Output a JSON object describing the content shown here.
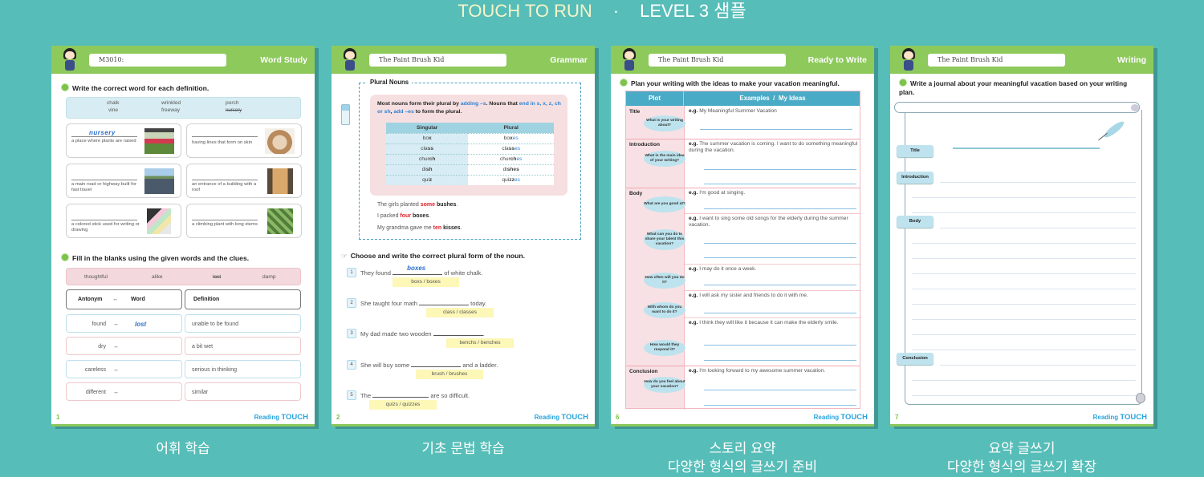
{
  "banner": {
    "brand": "TOUCH TO RUN",
    "separator": "·",
    "level": "LEVEL 3 샘플"
  },
  "colors": {
    "background": "#57bdb8",
    "header_green": "#8ec95c",
    "logo_blue": "#2aa4dc",
    "table_teal": "#4aabc6"
  },
  "logo": {
    "a": "Reading ",
    "b": "TOUCH"
  },
  "pages": [
    {
      "title_box": "M3010:",
      "section": "Word Study",
      "instruction1": "Write the correct word for each definition.",
      "word_bank": [
        "chalk",
        "wrinkled",
        "porch",
        "vine",
        "freeway",
        "nursery"
      ],
      "cards": [
        {
          "answer": "nursery",
          "definition": "a place where plants are raised",
          "image": "greenhouse"
        },
        {
          "answer": "",
          "definition": "having lines that form on skin",
          "image": "bulldog"
        },
        {
          "answer": "",
          "definition": "a main road or highway built for fast travel",
          "image": "freeway"
        },
        {
          "answer": "",
          "definition": "an entrance of a building with a roof",
          "image": "porch"
        },
        {
          "answer": "",
          "definition": "a colored stick used for writing or drawing",
          "image": "chalk"
        },
        {
          "answer": "",
          "definition": "a climbing plant with long stems",
          "image": "vine"
        }
      ],
      "instruction2": "Fill in the blanks using the given words and the clues.",
      "word_bank2": [
        "thoughtful",
        "alike",
        "lost",
        "damp"
      ],
      "header": {
        "antonym": "Antonym",
        "arrow": "↔",
        "word": "Word",
        "definition": "Definition"
      },
      "rows": [
        {
          "antonym": "found",
          "word": "lost",
          "definition": "unable to be found"
        },
        {
          "antonym": "dry",
          "word": "",
          "definition": "a bit wet"
        },
        {
          "antonym": "careless",
          "word": "",
          "definition": "serious in thinking"
        },
        {
          "antonym": "different",
          "word": "",
          "definition": "similar"
        }
      ],
      "page_number": "1"
    },
    {
      "title_box": "The Paint Brush Kid",
      "section": "Grammar",
      "box_title": "Plural Nouns",
      "rule": [
        "Most nouns form their plural by ",
        "adding –s",
        ". Nouns that ",
        "end in s, x, z, ch or sh",
        ", ",
        "add –es",
        " to form the plural."
      ],
      "table_headers": [
        "Singular",
        "Plural"
      ],
      "table_rows": [
        {
          "singular": [
            "bo",
            "x"
          ],
          "plural": [
            "bo",
            "x",
            "es"
          ]
        },
        {
          "singular": [
            "cla",
            "ss"
          ],
          "plural": [
            "cla",
            "ss",
            "es"
          ]
        },
        {
          "singular": [
            "chur",
            "ch"
          ],
          "plural": [
            "chur",
            "ch",
            "es"
          ]
        },
        {
          "singular": [
            "di",
            "sh"
          ],
          "plural": [
            "di",
            "sh",
            "es"
          ]
        },
        {
          "singular": [
            "qui",
            "z"
          ],
          "plural": [
            "qui",
            "zz",
            "es"
          ]
        }
      ],
      "examples": [
        [
          "The girls planted ",
          "some",
          " bushes",
          "."
        ],
        [
          "I packed ",
          "four",
          " boxes",
          "."
        ],
        [
          "My grandma gave me ",
          "ten",
          " kisses",
          "."
        ]
      ],
      "instruction": "Choose and write the correct plural form of the noun.",
      "items": [
        {
          "n": "1",
          "before": "They found ",
          "answer": "boxes",
          "after": " of white chalk.",
          "choices": "boxs  /  boxes"
        },
        {
          "n": "2",
          "before": "She taught four math ",
          "answer": "",
          "after": " today.",
          "choices": "class  /  classes"
        },
        {
          "n": "3",
          "before": "My dad made two wooden ",
          "answer": "",
          "after": ".",
          "choices": "benchs  /  benches"
        },
        {
          "n": "4",
          "before": "She will buy some ",
          "answer": "",
          "after": " and a ladder.",
          "choices": "brush  /  brushes"
        },
        {
          "n": "5",
          "before": "The ",
          "answer": "",
          "after": " are so difficult.",
          "choices": "quizs  /  quizzes"
        }
      ],
      "page_number": "2"
    },
    {
      "title_box": "The Paint Brush Kid",
      "section": "Ready to Write",
      "instruction": "Plan your writing with the ideas to make your vacation meaningful.",
      "col_plot": "Plot",
      "col_examples": "Examples  /  My Ideas",
      "eg": "e.g.",
      "plots": [
        "Title",
        "Introduction",
        "Body",
        "Conclusion"
      ],
      "prompts": [
        {
          "question": "What is your writing about?",
          "example": "My Meaningful Summer Vacation"
        },
        {
          "question": "What is the main idea of your writing?",
          "example": "The summer vacation is coming. I want to do something meaningful during the vacation."
        },
        {
          "question": "What are you good at?",
          "example": "I'm good at singing."
        },
        {
          "question": "What can you do to share your talent this vacation?",
          "example": "I want to sing some old songs for the elderly during the summer vacation."
        },
        {
          "question": "How often will you do it?",
          "example": "I may do it once a week."
        },
        {
          "question": "With whom do you want to do it?",
          "example": "I will ask my sister and friends to do it with me."
        },
        {
          "question": "How would they respond it?",
          "example": "I think they will like it because it can make the elderly smile."
        },
        {
          "question": "How do you feel about your vacation?",
          "example": "I'm looking forward to my awesome summer vacation."
        }
      ],
      "page_number": "6"
    },
    {
      "title_box": "The Paint Brush Kid",
      "section": "Writing",
      "instruction": "Write a journal about your meaningful vacation based on your writing plan.",
      "labels": [
        "Title",
        "Introduction",
        "Body",
        "Conclusion"
      ],
      "page_number": "7"
    }
  ],
  "captions": [
    [
      "어휘 학습"
    ],
    [
      "기초 문법 학습"
    ],
    [
      "스토리 요약",
      "다양한 형식의 글쓰기 준비"
    ],
    [
      "요약 글쓰기",
      "다양한 형식의 글쓰기 확장"
    ]
  ]
}
